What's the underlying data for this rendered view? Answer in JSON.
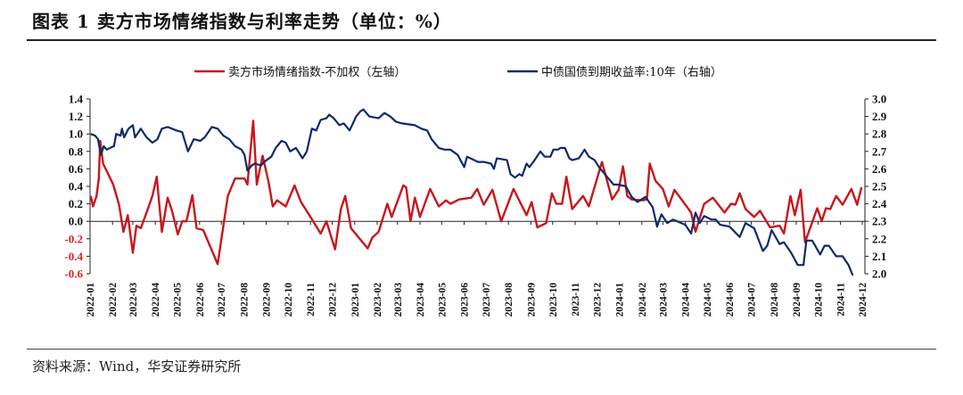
{
  "title": "图表 1 卖方市场情绪指数与利率走势（单位：%）",
  "source": "资料来源：Wind，华安证券研究所",
  "chart_data": {
    "type": "line",
    "title": "图表 1 卖方市场情绪指数与利率走势（单位：%）",
    "legend_position": "top",
    "grid": false,
    "x_ticks": [
      "2022-01",
      "2022-02",
      "2022-03",
      "2022-04",
      "2022-05",
      "2022-06",
      "2022-07",
      "2022-08",
      "2022-09",
      "2022-10",
      "2022-11",
      "2022-12",
      "2023-01",
      "2023-02",
      "2023-03",
      "2023-04",
      "2023-05",
      "2023-06",
      "2023-07",
      "2023-08",
      "2023-09",
      "2023-10",
      "2023-11",
      "2023-12",
      "2024-01",
      "2024-02",
      "2024-03",
      "2024-04",
      "2024-05",
      "2024-06",
      "2024-07",
      "2024-08",
      "2024-09",
      "2024-10",
      "2024-11",
      "2024-12"
    ],
    "y_left": {
      "range": [
        -0.6,
        1.4
      ],
      "ticks": [
        "1.4",
        "1.2",
        "1.0",
        "0.8",
        "0.6",
        "0.4",
        "0.2",
        "0.0",
        "-0.2",
        "-0.4",
        "-0.6"
      ],
      "negative_color": "#e0202a"
    },
    "y_right": {
      "range": [
        2.0,
        3.0
      ],
      "ticks": [
        "3.0",
        "2.9",
        "2.8",
        "2.7",
        "2.6",
        "2.5",
        "2.4",
        "2.3",
        "2.2",
        "2.1",
        "2.0"
      ]
    },
    "series": [
      {
        "name": "卖方市场情绪指数-不加权（左轴）",
        "axis": "left",
        "color": "#c8161d",
        "points": [
          [
            "2022-01-02",
            0.29
          ],
          [
            "2022-01-05",
            0.17
          ],
          [
            "2022-01-10",
            0.29
          ],
          [
            "2022-01-13",
            0.49
          ],
          [
            "2022-01-15",
            0.92
          ],
          [
            "2022-01-19",
            0.66
          ],
          [
            "2022-02-02",
            0.42
          ],
          [
            "2022-02-10",
            0.19
          ],
          [
            "2022-02-16",
            -0.12
          ],
          [
            "2022-02-22",
            0.07
          ],
          [
            "2022-03-01",
            -0.36
          ],
          [
            "2022-03-06",
            -0.05
          ],
          [
            "2022-03-12",
            -0.08
          ],
          [
            "2022-03-22",
            0.15
          ],
          [
            "2022-03-28",
            0.29
          ],
          [
            "2022-04-03",
            0.51
          ],
          [
            "2022-04-10",
            -0.12
          ],
          [
            "2022-04-18",
            0.27
          ],
          [
            "2022-04-24",
            0.12
          ],
          [
            "2022-05-02",
            -0.15
          ],
          [
            "2022-05-08",
            0.0
          ],
          [
            "2022-05-14",
            0.0
          ],
          [
            "2022-05-22",
            0.3
          ],
          [
            "2022-05-28",
            -0.08
          ],
          [
            "2022-06-06",
            -0.1
          ],
          [
            "2022-06-26",
            -0.49
          ],
          [
            "2022-07-10",
            0.29
          ],
          [
            "2022-07-20",
            0.49
          ],
          [
            "2022-08-02",
            0.49
          ],
          [
            "2022-08-06",
            0.42
          ],
          [
            "2022-08-14",
            1.15
          ],
          [
            "2022-08-19",
            0.42
          ],
          [
            "2022-08-27",
            0.75
          ],
          [
            "2022-09-04",
            0.46
          ],
          [
            "2022-09-10",
            0.17
          ],
          [
            "2022-09-16",
            0.24
          ],
          [
            "2022-09-28",
            0.17
          ],
          [
            "2022-10-10",
            0.41
          ],
          [
            "2022-10-19",
            0.22
          ],
          [
            "2022-11-01",
            0.05
          ],
          [
            "2022-11-15",
            -0.14
          ],
          [
            "2022-11-23",
            0.0
          ],
          [
            "2022-12-05",
            -0.32
          ],
          [
            "2022-12-13",
            0.14
          ],
          [
            "2022-12-19",
            0.29
          ],
          [
            "2022-12-27",
            -0.08
          ],
          [
            "2023-01-19",
            -0.31
          ],
          [
            "2023-01-25",
            -0.19
          ],
          [
            "2023-02-03",
            -0.12
          ],
          [
            "2023-02-15",
            0.2
          ],
          [
            "2023-02-21",
            0.05
          ],
          [
            "2023-03-09",
            0.41
          ],
          [
            "2023-03-13",
            0.39
          ],
          [
            "2023-03-19",
            0.0
          ],
          [
            "2023-03-25",
            0.27
          ],
          [
            "2023-04-01",
            0.05
          ],
          [
            "2023-04-15",
            0.37
          ],
          [
            "2023-04-27",
            0.17
          ],
          [
            "2023-05-07",
            0.24
          ],
          [
            "2023-05-13",
            0.2
          ],
          [
            "2023-05-25",
            0.25
          ],
          [
            "2023-06-11",
            0.27
          ],
          [
            "2023-06-19",
            0.37
          ],
          [
            "2023-06-28",
            0.19
          ],
          [
            "2023-07-10",
            0.36
          ],
          [
            "2023-07-22",
            0.0
          ],
          [
            "2023-08-08",
            0.37
          ],
          [
            "2023-08-26",
            0.07
          ],
          [
            "2023-09-02",
            0.22
          ],
          [
            "2023-09-10",
            -0.07
          ],
          [
            "2023-09-22",
            -0.02
          ],
          [
            "2023-09-30",
            0.32
          ],
          [
            "2023-10-06",
            0.2
          ],
          [
            "2023-10-14",
            0.2
          ],
          [
            "2023-10-20",
            0.51
          ],
          [
            "2023-10-28",
            0.14
          ],
          [
            "2023-11-12",
            0.29
          ],
          [
            "2023-11-20",
            0.17
          ],
          [
            "2023-12-08",
            0.68
          ],
          [
            "2023-12-22",
            0.25
          ],
          [
            "2023-12-31",
            0.36
          ],
          [
            "2024-01-06",
            0.63
          ],
          [
            "2024-01-12",
            0.29
          ],
          [
            "2024-01-18",
            0.25
          ],
          [
            "2024-02-02",
            0.24
          ],
          [
            "2024-02-08",
            0.25
          ],
          [
            "2024-02-12",
            0.66
          ],
          [
            "2024-02-20",
            0.46
          ],
          [
            "2024-03-01",
            0.37
          ],
          [
            "2024-03-09",
            0.17
          ],
          [
            "2024-03-17",
            0.36
          ],
          [
            "2024-04-01",
            0.19
          ],
          [
            "2024-04-09",
            0.1
          ],
          [
            "2024-04-15",
            -0.12
          ],
          [
            "2024-04-27",
            0.2
          ],
          [
            "2024-05-09",
            0.27
          ],
          [
            "2024-05-25",
            0.1
          ],
          [
            "2024-06-03",
            0.2
          ],
          [
            "2024-06-09",
            0.19
          ],
          [
            "2024-06-15",
            0.32
          ],
          [
            "2024-06-23",
            0.14
          ],
          [
            "2024-07-05",
            0.05
          ],
          [
            "2024-07-13",
            0.12
          ],
          [
            "2024-07-27",
            -0.07
          ],
          [
            "2024-08-09",
            -0.05
          ],
          [
            "2024-08-15",
            -0.14
          ],
          [
            "2024-08-24",
            0.29
          ],
          [
            "2024-08-30",
            0.07
          ],
          [
            "2024-09-07",
            0.36
          ],
          [
            "2024-09-13",
            -0.24
          ],
          [
            "2024-09-30",
            0.15
          ],
          [
            "2024-10-06",
            0.0
          ],
          [
            "2024-10-12",
            0.15
          ],
          [
            "2024-10-18",
            0.14
          ],
          [
            "2024-10-26",
            0.29
          ],
          [
            "2024-11-04",
            0.19
          ],
          [
            "2024-11-16",
            0.37
          ],
          [
            "2024-11-24",
            0.19
          ],
          [
            "2024-11-30",
            0.39
          ]
        ]
      },
      {
        "name": "中债国债到期收益率:10年（右轴）",
        "axis": "right",
        "color": "#0f2a6b",
        "points": [
          [
            "2022-01-02",
            2.8
          ],
          [
            "2022-01-08",
            2.79
          ],
          [
            "2022-01-12",
            2.77
          ],
          [
            "2022-01-16",
            2.68
          ],
          [
            "2022-01-20",
            2.73
          ],
          [
            "2022-01-24",
            2.71
          ],
          [
            "2022-02-03",
            2.73
          ],
          [
            "2022-02-06",
            2.8
          ],
          [
            "2022-02-12",
            2.79
          ],
          [
            "2022-02-14",
            2.83
          ],
          [
            "2022-02-17",
            2.78
          ],
          [
            "2022-02-23",
            2.83
          ],
          [
            "2022-03-01",
            2.85
          ],
          [
            "2022-03-04",
            2.78
          ],
          [
            "2022-03-12",
            2.83
          ],
          [
            "2022-03-20",
            2.78
          ],
          [
            "2022-03-28",
            2.75
          ],
          [
            "2022-04-04",
            2.77
          ],
          [
            "2022-04-10",
            2.83
          ],
          [
            "2022-04-18",
            2.84
          ],
          [
            "2022-04-30",
            2.82
          ],
          [
            "2022-05-08",
            2.81
          ],
          [
            "2022-05-16",
            2.7
          ],
          [
            "2022-05-24",
            2.77
          ],
          [
            "2022-06-02",
            2.76
          ],
          [
            "2022-06-08",
            2.78
          ],
          [
            "2022-06-18",
            2.84
          ],
          [
            "2022-06-26",
            2.83
          ],
          [
            "2022-07-04",
            2.79
          ],
          [
            "2022-07-12",
            2.77
          ],
          [
            "2022-07-20",
            2.73
          ],
          [
            "2022-07-29",
            2.71
          ],
          [
            "2022-08-02",
            2.68
          ],
          [
            "2022-08-06",
            2.59
          ],
          [
            "2022-08-12",
            2.62
          ],
          [
            "2022-08-16",
            2.63
          ],
          [
            "2022-08-25",
            2.62
          ],
          [
            "2022-08-29",
            2.64
          ],
          [
            "2022-09-08",
            2.67
          ],
          [
            "2022-09-14",
            2.72
          ],
          [
            "2022-09-22",
            2.76
          ],
          [
            "2022-09-28",
            2.75
          ],
          [
            "2022-10-04",
            2.7
          ],
          [
            "2022-10-12",
            2.72
          ],
          [
            "2022-10-21",
            2.66
          ],
          [
            "2022-10-27",
            2.7
          ],
          [
            "2022-11-03",
            2.83
          ],
          [
            "2022-11-09",
            2.82
          ],
          [
            "2022-11-15",
            2.88
          ],
          [
            "2022-11-23",
            2.89
          ],
          [
            "2022-11-27",
            2.91
          ],
          [
            "2022-12-03",
            2.89
          ],
          [
            "2022-12-11",
            2.85
          ],
          [
            "2022-12-17",
            2.86
          ],
          [
            "2022-12-25",
            2.82
          ],
          [
            "2023-01-03",
            2.9
          ],
          [
            "2023-01-09",
            2.93
          ],
          [
            "2023-01-13",
            2.94
          ],
          [
            "2023-01-21",
            2.9
          ],
          [
            "2023-02-03",
            2.89
          ],
          [
            "2023-02-11",
            2.92
          ],
          [
            "2023-02-19",
            2.9
          ],
          [
            "2023-02-27",
            2.87
          ],
          [
            "2023-03-07",
            2.86
          ],
          [
            "2023-03-25",
            2.85
          ],
          [
            "2023-04-03",
            2.83
          ],
          [
            "2023-04-11",
            2.82
          ],
          [
            "2023-04-17",
            2.77
          ],
          [
            "2023-04-27",
            2.72
          ],
          [
            "2023-05-05",
            2.71
          ],
          [
            "2023-05-13",
            2.71
          ],
          [
            "2023-05-23",
            2.68
          ],
          [
            "2023-06-01",
            2.61
          ],
          [
            "2023-06-05",
            2.67
          ],
          [
            "2023-06-15",
            2.65
          ],
          [
            "2023-06-20",
            2.64
          ],
          [
            "2023-06-28",
            2.64
          ],
          [
            "2023-07-08",
            2.63
          ],
          [
            "2023-07-12",
            2.6
          ],
          [
            "2023-07-16",
            2.66
          ],
          [
            "2023-07-30",
            2.65
          ],
          [
            "2023-08-04",
            2.57
          ],
          [
            "2023-08-10",
            2.55
          ],
          [
            "2023-08-16",
            2.57
          ],
          [
            "2023-08-20",
            2.56
          ],
          [
            "2023-08-26",
            2.63
          ],
          [
            "2023-08-30",
            2.61
          ],
          [
            "2023-09-06",
            2.65
          ],
          [
            "2023-09-14",
            2.7
          ],
          [
            "2023-09-20",
            2.67
          ],
          [
            "2023-09-28",
            2.67
          ],
          [
            "2023-10-02",
            2.71
          ],
          [
            "2023-10-08",
            2.71
          ],
          [
            "2023-10-12",
            2.72
          ],
          [
            "2023-10-18",
            2.72
          ],
          [
            "2023-10-24",
            2.66
          ],
          [
            "2023-10-28",
            2.65
          ],
          [
            "2023-11-06",
            2.66
          ],
          [
            "2023-11-14",
            2.71
          ],
          [
            "2023-11-20",
            2.67
          ],
          [
            "2023-11-28",
            2.65
          ],
          [
            "2023-12-04",
            2.61
          ],
          [
            "2023-12-16",
            2.55
          ],
          [
            "2023-12-24",
            2.51
          ],
          [
            "2023-12-30",
            2.51
          ],
          [
            "2024-01-10",
            2.5
          ],
          [
            "2024-01-18",
            2.44
          ],
          [
            "2024-01-26",
            2.41
          ],
          [
            "2024-02-06",
            2.44
          ],
          [
            "2024-02-16",
            2.38
          ],
          [
            "2024-02-22",
            2.27
          ],
          [
            "2024-02-28",
            2.34
          ],
          [
            "2024-03-07",
            2.29
          ],
          [
            "2024-03-15",
            2.31
          ],
          [
            "2024-04-01",
            2.28
          ],
          [
            "2024-04-09",
            2.23
          ],
          [
            "2024-04-15",
            2.35
          ],
          [
            "2024-04-21",
            2.29
          ],
          [
            "2024-04-27",
            2.33
          ],
          [
            "2024-05-07",
            2.31
          ],
          [
            "2024-05-13",
            2.31
          ],
          [
            "2024-05-19",
            2.28
          ],
          [
            "2024-06-01",
            2.27
          ],
          [
            "2024-06-15",
            2.21
          ],
          [
            "2024-06-23",
            2.29
          ],
          [
            "2024-07-05",
            2.26
          ],
          [
            "2024-07-17",
            2.13
          ],
          [
            "2024-07-23",
            2.16
          ],
          [
            "2024-07-29",
            2.25
          ],
          [
            "2024-08-09",
            2.17
          ],
          [
            "2024-08-15",
            2.18
          ],
          [
            "2024-08-25",
            2.12
          ],
          [
            "2024-09-03",
            2.05
          ],
          [
            "2024-09-11",
            2.05
          ],
          [
            "2024-09-15",
            2.19
          ],
          [
            "2024-09-23",
            2.19
          ],
          [
            "2024-10-04",
            2.11
          ],
          [
            "2024-10-10",
            2.16
          ],
          [
            "2024-10-16",
            2.16
          ],
          [
            "2024-10-26",
            2.1
          ],
          [
            "2024-11-04",
            2.1
          ],
          [
            "2024-11-12",
            2.05
          ],
          [
            "2024-11-18",
            1.99
          ]
        ]
      }
    ]
  }
}
